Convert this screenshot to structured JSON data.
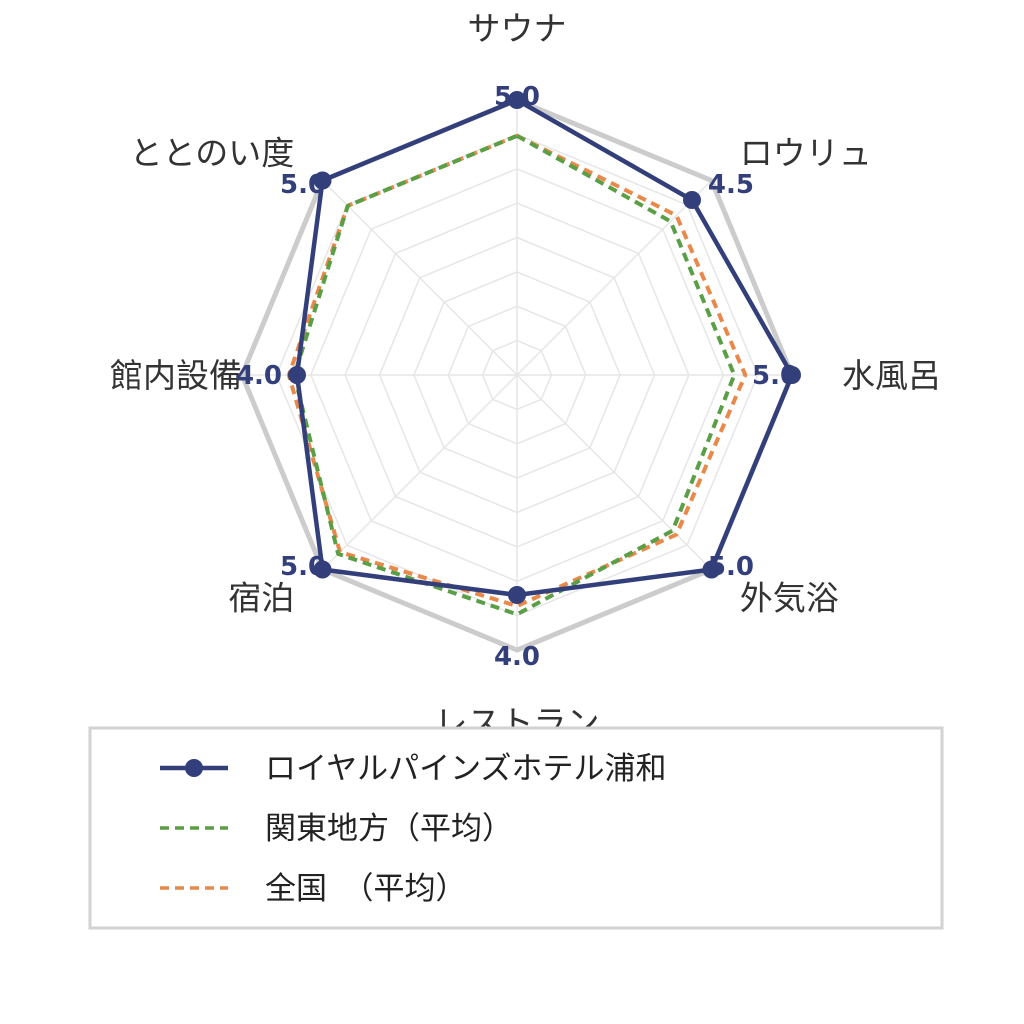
{
  "chart_data": {
    "type": "radar",
    "title": "",
    "scale": {
      "min": 0,
      "max": 5,
      "rings": 8
    },
    "grid": true,
    "legend_position": "bottom",
    "axes": [
      "サウナ",
      "ロウリュ",
      "水風呂",
      "外気浴",
      "レストラン",
      "宿泊",
      "館内設備",
      "ととのい度"
    ],
    "value_labels": [
      "5.0",
      "4.5",
      "5.0",
      "5.0",
      "4.0",
      "5.0",
      "4.0",
      "5.0"
    ],
    "series": [
      {
        "name": "ロイヤルパインズホテル浦和",
        "values": [
          5.0,
          4.5,
          5.0,
          5.0,
          4.0,
          5.0,
          4.0,
          5.0
        ],
        "color": "#333f7a",
        "style": "solid-markers"
      },
      {
        "name": "関東地方（平均）",
        "values": [
          4.35,
          3.95,
          3.95,
          4.0,
          4.35,
          4.6,
          4.05,
          4.35
        ],
        "color": "#5a9e45",
        "style": "dashed"
      },
      {
        "name": "全国　（平均）",
        "values": [
          4.35,
          4.1,
          4.15,
          4.1,
          4.2,
          4.55,
          4.15,
          4.35
        ],
        "color": "#e8884a",
        "style": "dashed"
      }
    ],
    "full_scale_outline_color": "#cccccc",
    "grid_color": "#e6e6e6",
    "value_label_color": "#333f7a"
  }
}
